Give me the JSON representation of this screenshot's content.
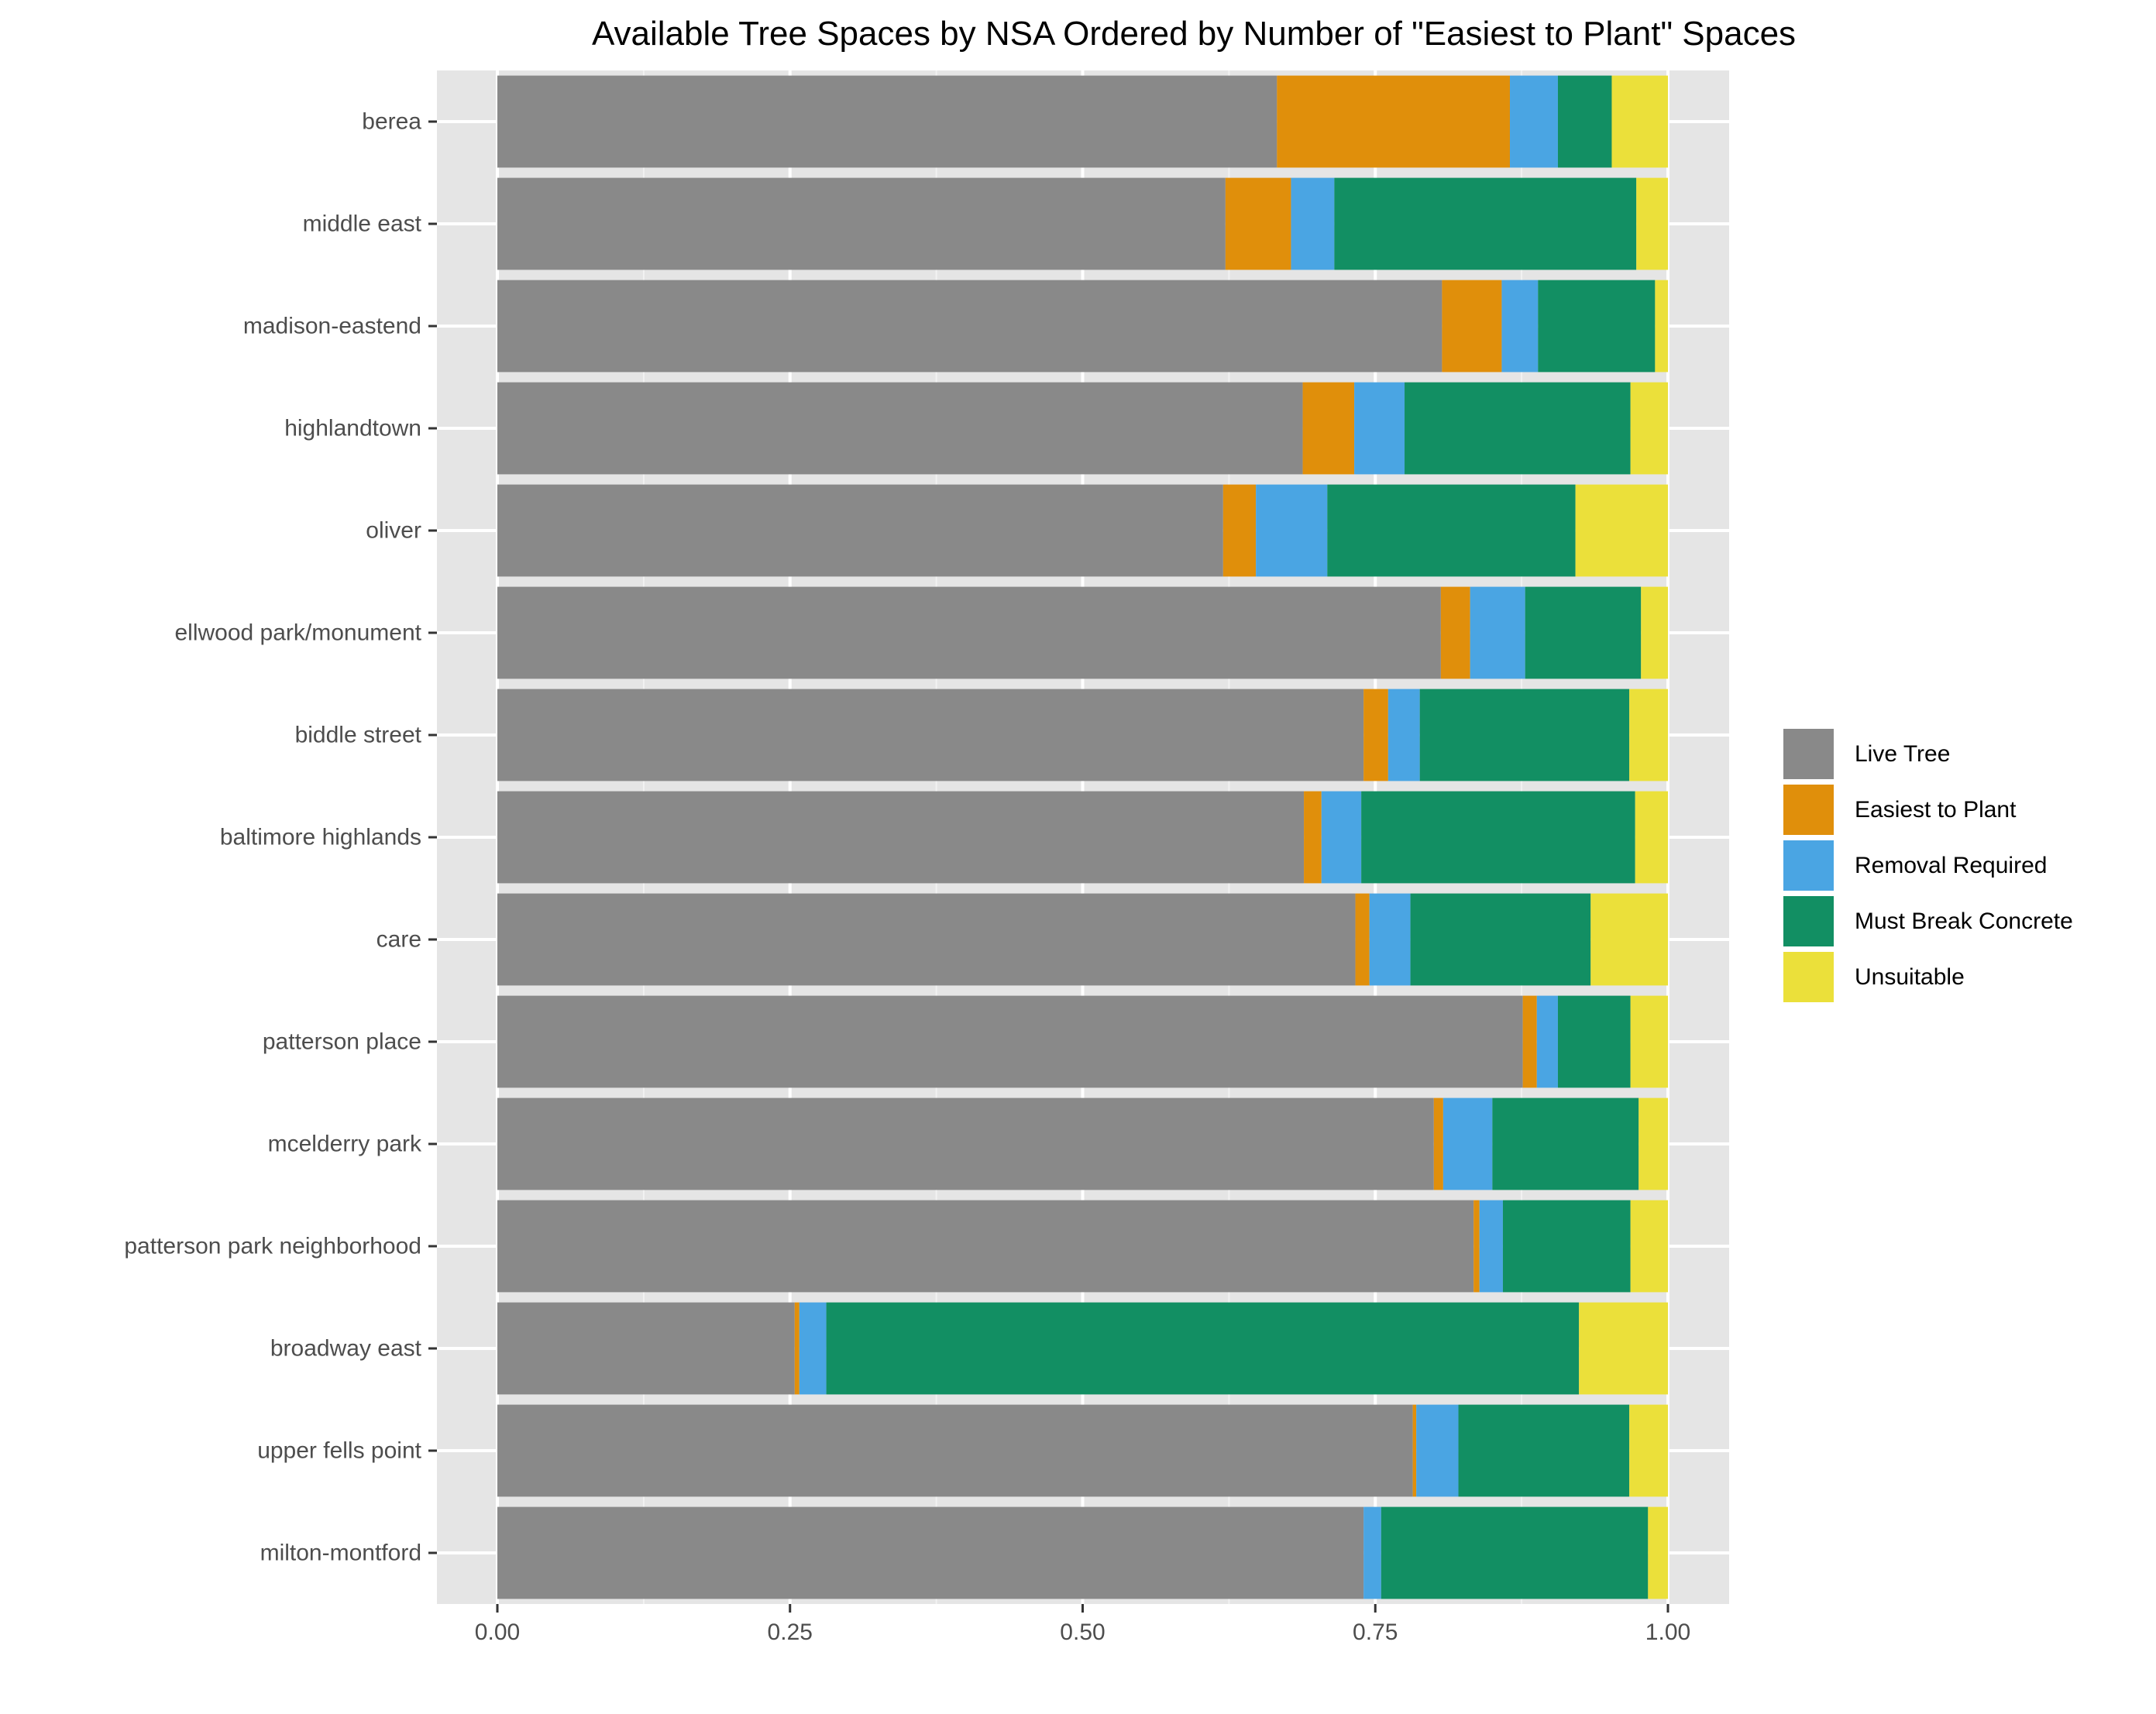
{
  "chart_data": {
    "type": "bar",
    "orientation": "horizontal",
    "stacked": "fill",
    "title": "Available Tree Spaces by NSA Ordered by Number of \"Easiest to Plant\" Spaces",
    "xlabel": "",
    "ylabel": "",
    "xlim": [
      0,
      1
    ],
    "x_ticks": [
      0,
      0.25,
      0.5,
      0.75,
      1
    ],
    "x_tick_labels": [
      "0.00",
      "0.25",
      "0.50",
      "0.75",
      "1.00"
    ],
    "grid": true,
    "legend_position": "right",
    "categories": [
      "berea",
      "middle east",
      "madison-eastend",
      "highlandtown",
      "oliver",
      "ellwood park/monument",
      "biddle street",
      "baltimore highlands",
      "care",
      "patterson place",
      "mcelderry park",
      "patterson park neighborhood",
      "broadway east",
      "upper fells point",
      "milton-montford"
    ],
    "series": [
      {
        "name": "Live Tree",
        "color": "#898989",
        "values": [
          0.666,
          0.622,
          0.807,
          0.688,
          0.62,
          0.806,
          0.74,
          0.689,
          0.733,
          0.876,
          0.8,
          0.834,
          0.254,
          0.782,
          0.74
        ]
      },
      {
        "name": "Easiest to Plant",
        "color": "#E08F0B",
        "values": [
          0.199,
          0.056,
          0.051,
          0.044,
          0.028,
          0.025,
          0.021,
          0.015,
          0.012,
          0.012,
          0.008,
          0.005,
          0.004,
          0.003,
          0.0
        ]
      },
      {
        "name": "Removal Required",
        "color": "#4AA5E3",
        "values": [
          0.041,
          0.037,
          0.031,
          0.043,
          0.061,
          0.047,
          0.027,
          0.034,
          0.035,
          0.018,
          0.042,
          0.02,
          0.023,
          0.036,
          0.015
        ]
      },
      {
        "name": "Must Break Concrete",
        "color": "#128F63",
        "values": [
          0.046,
          0.258,
          0.1,
          0.193,
          0.212,
          0.099,
          0.179,
          0.234,
          0.154,
          0.062,
          0.125,
          0.109,
          0.643,
          0.146,
          0.228
        ]
      },
      {
        "name": "Unsuitable",
        "color": "#EBE03A",
        "values": [
          0.048,
          0.027,
          0.011,
          0.032,
          0.079,
          0.023,
          0.033,
          0.028,
          0.066,
          0.032,
          0.025,
          0.032,
          0.076,
          0.033,
          0.017
        ]
      }
    ]
  }
}
